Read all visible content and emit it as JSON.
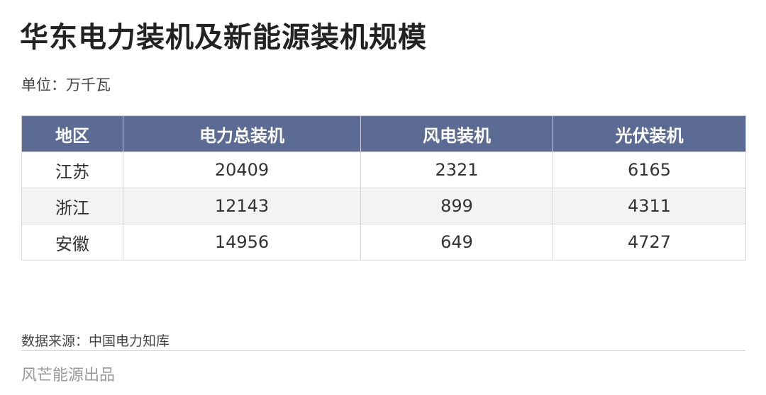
{
  "title": "华东电力装机及新能源装机规模",
  "unit": "单位：万千瓦",
  "source": "数据来源：中国电力知库",
  "brand": "风芒能源出品",
  "colors": {
    "header_bg": "#5b6b93",
    "header_text": "#ffffff",
    "alt_row_bg": "#f3f3f4"
  },
  "chart_data": {
    "type": "table",
    "title": "华东电力装机及新能源装机规模",
    "columns": [
      "地区",
      "电力总装机",
      "风电装机",
      "光伏装机"
    ],
    "rows": [
      [
        "江苏",
        "20409",
        "2321",
        "6165"
      ],
      [
        "浙江",
        "12143",
        "899",
        "4311"
      ],
      [
        "安徽",
        "14956",
        "649",
        "4727"
      ]
    ]
  }
}
